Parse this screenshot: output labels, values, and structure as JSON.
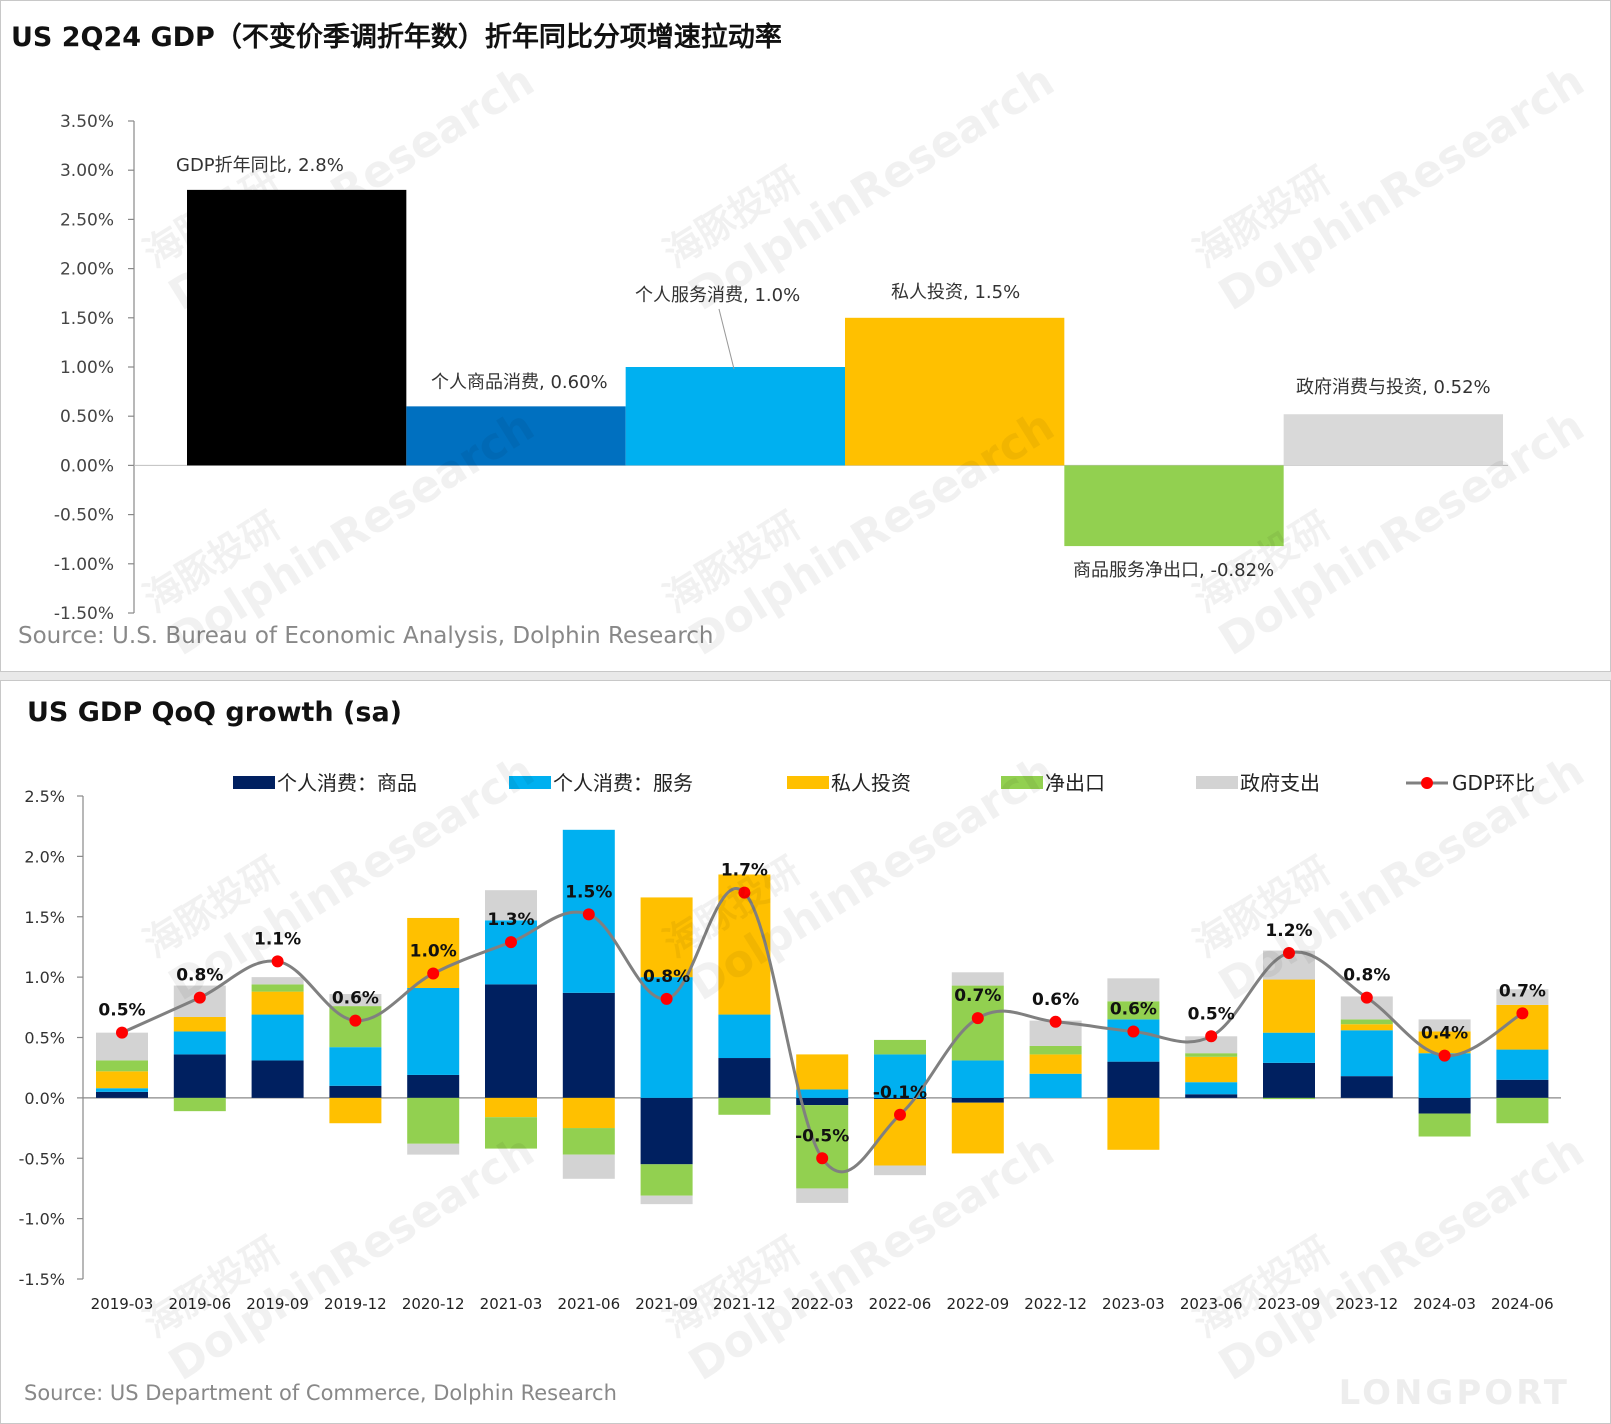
{
  "watermark": {
    "cn": "海豚投研",
    "en": "DolphinResearch",
    "brand": "LONGPORT"
  },
  "charts": [
    {
      "title": "US 2Q24 GDP（不变价季调折年数）折年同比分项增速拉动率",
      "source": "Source: U.S. Bureau of Economic Analysis, Dolphin Research",
      "chart_data": {
        "type": "bar",
        "categories": [
          "GDP折年同比",
          "个人商品消费",
          "个人服务消费",
          "私人投资",
          "商品服务净出口",
          "政府消费与投资"
        ],
        "values": [
          2.8,
          0.6,
          1.0,
          1.5,
          -0.82,
          0.52
        ],
        "data_labels": [
          "GDP折年同比, 2.8%",
          "个人商品消费, 0.60%",
          "个人服务消费, 1.0%",
          "私人投资, 1.5%",
          "商品服务净出口, -0.82%",
          "政府消费与投资, 0.52%"
        ],
        "colors": [
          "#000000",
          "#0070c0",
          "#00b0f0",
          "#ffc000",
          "#92d050",
          "#d9d9d9"
        ],
        "ylim": [
          -1.5,
          3.5
        ],
        "yticks": [
          "3.50%",
          "3.00%",
          "2.50%",
          "2.00%",
          "1.50%",
          "1.00%",
          "0.50%",
          "0.00%",
          "-0.50%",
          "-1.00%",
          "-1.50%"
        ],
        "ytick_values": [
          3.5,
          3.0,
          2.5,
          2.0,
          1.5,
          1.0,
          0.5,
          0.0,
          -0.5,
          -1.0,
          -1.5
        ],
        "grid": false
      }
    },
    {
      "title": "US GDP QoQ growth (sa)",
      "source": "Source: US Department of Commerce, Dolphin Research",
      "chart_data": {
        "type": "bar",
        "stacked": true,
        "categories": [
          "2019-03",
          "2019-06",
          "2019-09",
          "2019-12",
          "2020-12",
          "2021-03",
          "2021-06",
          "2021-09",
          "2021-12",
          "2022-03",
          "2022-06",
          "2022-09",
          "2022-12",
          "2023-03",
          "2023-06",
          "2023-09",
          "2023-12",
          "2024-03",
          "2024-06"
        ],
        "series": [
          {
            "name": "个人消费：商品",
            "color": "#002060",
            "values": [
              0.05,
              0.36,
              0.31,
              0.1,
              0.19,
              0.94,
              0.87,
              -0.55,
              0.33,
              -0.06,
              -0.01,
              -0.04,
              0.0,
              0.3,
              0.03,
              0.29,
              0.18,
              -0.13,
              0.15
            ]
          },
          {
            "name": "个人消费：服务",
            "color": "#00b0f0",
            "values": [
              0.03,
              0.19,
              0.38,
              0.32,
              0.72,
              0.53,
              1.35,
              1.0,
              0.36,
              0.07,
              0.36,
              0.31,
              0.2,
              0.35,
              0.1,
              0.25,
              0.38,
              0.37,
              0.25
            ]
          },
          {
            "name": "私人投资",
            "color": "#ffc000",
            "values": [
              0.14,
              0.12,
              0.19,
              -0.21,
              0.58,
              -0.16,
              -0.25,
              0.66,
              1.16,
              0.29,
              -0.55,
              -0.42,
              0.16,
              -0.43,
              0.21,
              0.44,
              0.05,
              0.18,
              0.37
            ]
          },
          {
            "name": "净出口",
            "color": "#92d050",
            "values": [
              0.09,
              -0.11,
              0.06,
              0.34,
              -0.38,
              -0.26,
              -0.22,
              -0.26,
              -0.14,
              -0.69,
              0.12,
              0.62,
              0.07,
              0.15,
              0.03,
              -0.01,
              0.04,
              -0.19,
              -0.21
            ]
          },
          {
            "name": "政府支出",
            "color": "#d3d3d3",
            "values": [
              0.23,
              0.26,
              0.06,
              0.1,
              -0.09,
              0.25,
              -0.2,
              -0.07,
              0.0,
              -0.12,
              -0.08,
              0.11,
              0.21,
              0.19,
              0.14,
              0.24,
              0.19,
              0.1,
              0.13
            ]
          }
        ],
        "line": {
          "name": "GDP环比",
          "color": "#808080",
          "marker_color": "#ff0000",
          "values": [
            0.54,
            0.83,
            1.13,
            0.64,
            1.03,
            1.29,
            1.52,
            0.82,
            1.7,
            -0.5,
            -0.14,
            0.66,
            0.63,
            0.55,
            0.51,
            1.2,
            0.83,
            0.35,
            0.7
          ]
        },
        "line_labels": [
          "0.5%",
          "0.8%",
          "1.1%",
          "0.6%",
          "1.0%",
          "1.3%",
          "1.5%",
          "0.8%",
          "1.7%",
          "-0.5%",
          "-0.1%",
          "0.7%",
          "0.6%",
          "0.6%",
          "0.5%",
          "1.2%",
          "0.8%",
          "0.4%",
          "0.7%"
        ],
        "ylim": [
          -1.5,
          2.5
        ],
        "yticks": [
          "2.5%",
          "2.0%",
          "1.5%",
          "1.0%",
          "0.5%",
          "0.0%",
          "-0.5%",
          "-1.0%",
          "-1.5%"
        ],
        "ytick_values": [
          2.5,
          2.0,
          1.5,
          1.0,
          0.5,
          0.0,
          -0.5,
          -1.0,
          -1.5
        ],
        "legend": "top",
        "grid": false
      }
    }
  ]
}
